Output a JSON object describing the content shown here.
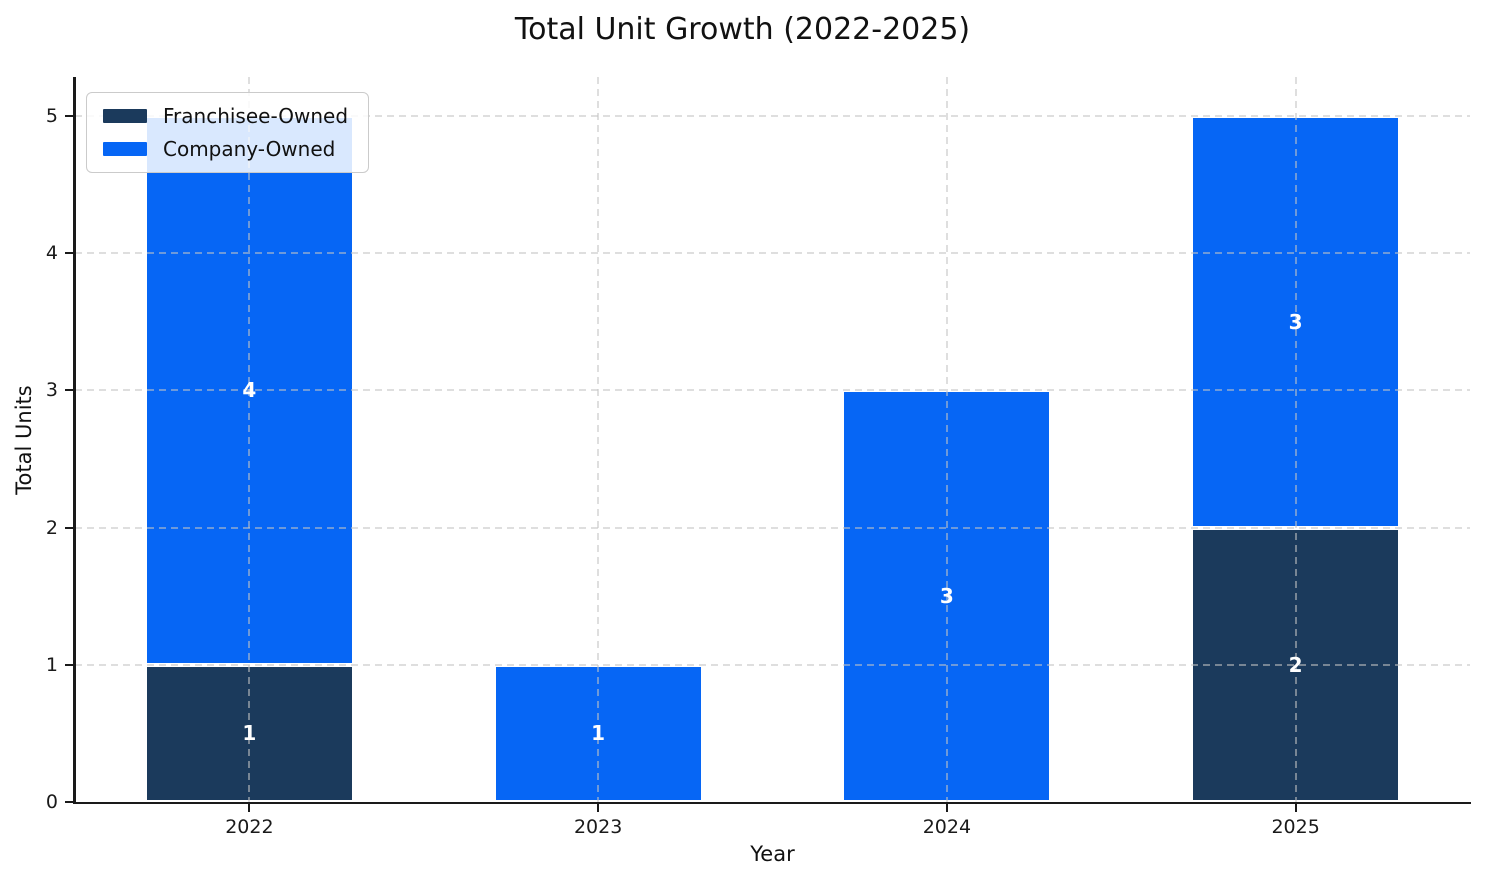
{
  "chart_data": {
    "type": "bar",
    "stacked": true,
    "title": "Total Unit Growth (2022-2025)",
    "xlabel": "Year",
    "ylabel": "Total Units",
    "categories": [
      "2022",
      "2023",
      "2024",
      "2025"
    ],
    "series": [
      {
        "name": "Franchisee-Owned",
        "color": "#1B3A5C",
        "values": [
          1,
          0,
          0,
          2
        ]
      },
      {
        "name": "Company-Owned",
        "color": "#0666F5",
        "values": [
          4,
          1,
          3,
          3
        ]
      }
    ],
    "totals": [
      5,
      1,
      3,
      5
    ],
    "bar_value_labels": true,
    "yticks": [
      0,
      1,
      2,
      3,
      4,
      5
    ],
    "ylim": [
      0,
      5.285
    ],
    "grid": "dashed",
    "grid_on_top": true,
    "legend_position": "upper-left",
    "background_color": "#ffffff",
    "spine_color": "#1a1a1a",
    "grid_color": "#c4c4c4",
    "bar_label_color": "#ffffff"
  }
}
